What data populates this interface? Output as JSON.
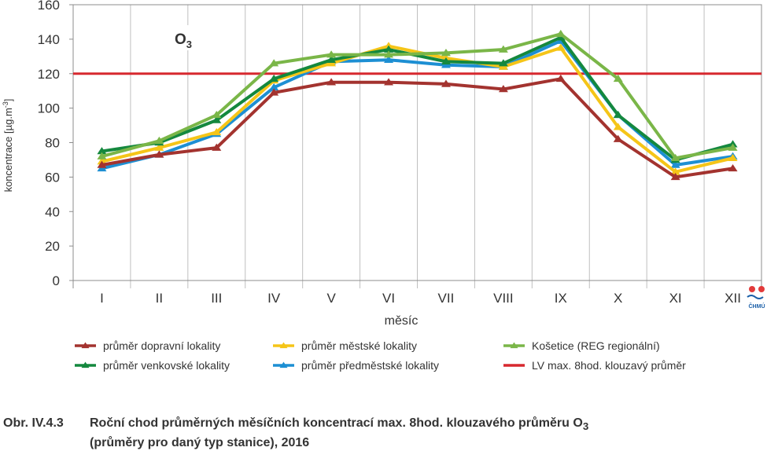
{
  "chart_data": {
    "type": "line",
    "annotation": "O3",
    "xlabel": "měsíc",
    "ylabel": "koncentrace [µg.m-3]",
    "ylim": [
      0,
      160
    ],
    "yticks": [
      "0",
      "20",
      "40",
      "60",
      "80",
      "100",
      "120",
      "140",
      "160"
    ],
    "categories": [
      "I",
      "II",
      "III",
      "IV",
      "V",
      "VI",
      "VII",
      "VIII",
      "IX",
      "X",
      "XI",
      "XII"
    ],
    "grid": "vertical",
    "limit_line": {
      "name": "LV max. 8hod. klouzavý průměr",
      "value": 120,
      "color": "#d7282f"
    },
    "series": [
      {
        "name": "průměr dopravní lokality",
        "color": "#a3332f",
        "values": [
          67,
          73,
          77,
          109,
          115,
          115,
          114,
          111,
          117,
          82,
          60,
          65
        ]
      },
      {
        "name": "průměr venkovské lokality",
        "color": "#14883e",
        "values": [
          75,
          80,
          93,
          117,
          128,
          134,
          127,
          126,
          141,
          96,
          70,
          79
        ]
      },
      {
        "name": "průměr městské lokality",
        "color": "#f5c518",
        "values": [
          69,
          77,
          86,
          116,
          126,
          136,
          129,
          124,
          135,
          89,
          63,
          71
        ]
      },
      {
        "name": "průměr předměstské lokality",
        "color": "#1d8fd3",
        "values": [
          65,
          73,
          85,
          112,
          127,
          128,
          125,
          124,
          139,
          96,
          67,
          72
        ]
      },
      {
        "name": "Košetice (REG regionální)",
        "color": "#7ab648",
        "values": [
          72,
          81,
          96,
          126,
          131,
          131,
          132,
          134,
          143,
          117,
          71,
          77
        ]
      }
    ],
    "legend_position": "bottom"
  },
  "logo_text": "ČHMÚ",
  "caption": {
    "number": "Obr. IV.4.3",
    "line1": "Roční chod průměrných měsíčních koncentrací max. 8hod. klouzavého průměru O",
    "line1_sub": "3",
    "line2": "(průměry pro daný typ stanice), 2016"
  }
}
